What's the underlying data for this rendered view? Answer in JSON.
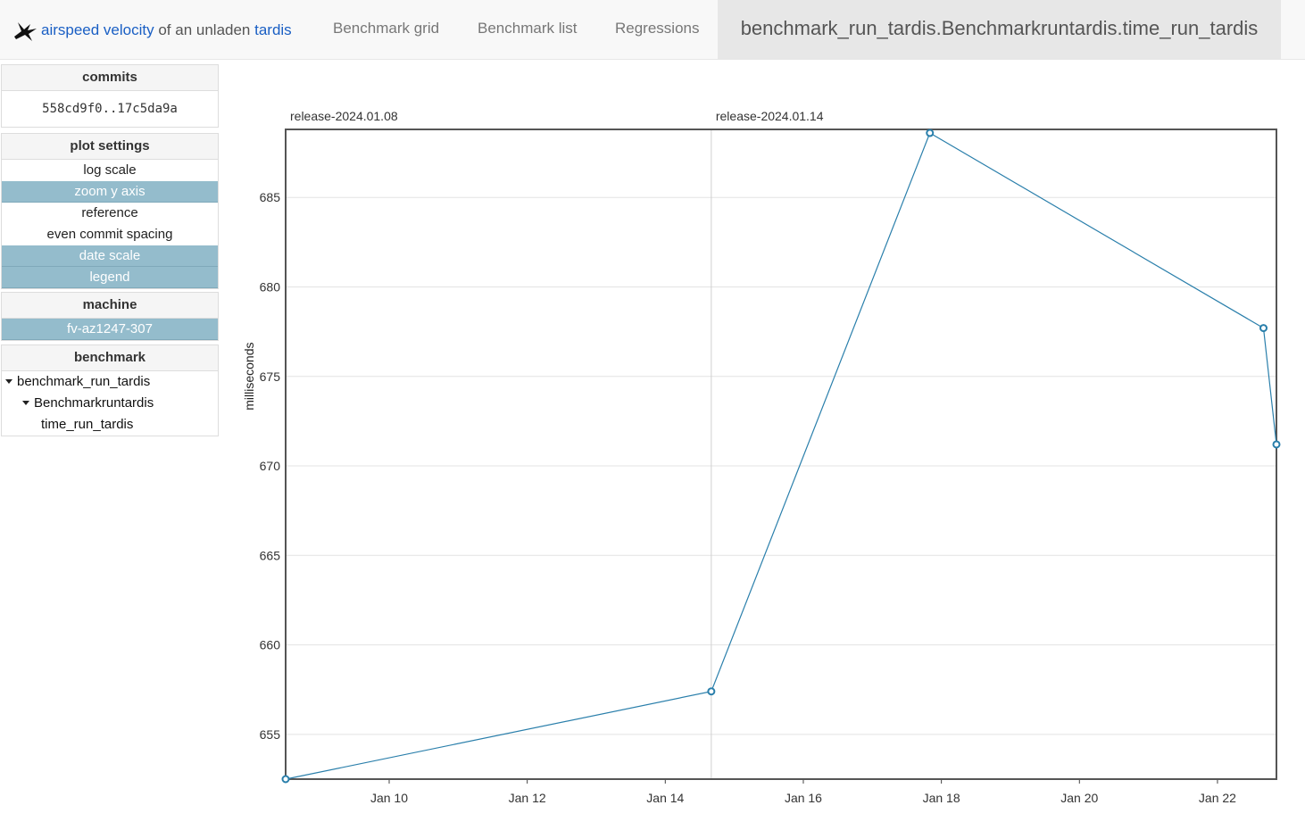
{
  "nav": {
    "brand": {
      "part1": "airspeed velocity",
      "part2": " of an unladen ",
      "part3": "tardis",
      "logo_icon": "swallow-bird-icon"
    },
    "items": [
      "Benchmark grid",
      "Benchmark list",
      "Regressions"
    ],
    "active": "benchmark_run_tardis.Benchmarkruntardis.time_run_tardis"
  },
  "sidebar": {
    "commits": {
      "title": "commits",
      "value": "558cd9f0..17c5da9a"
    },
    "plot_settings": {
      "title": "plot settings",
      "options": [
        {
          "label": "log scale",
          "active": false
        },
        {
          "label": "zoom y axis",
          "active": true
        },
        {
          "label": "reference",
          "active": false
        },
        {
          "label": "even commit spacing",
          "active": false
        },
        {
          "label": "date scale",
          "active": true
        },
        {
          "label": "legend",
          "active": true
        }
      ]
    },
    "machine": {
      "title": "machine",
      "value": "fv-az1247-307"
    },
    "benchmark": {
      "title": "benchmark",
      "tree": [
        {
          "label": "benchmark_run_tardis",
          "level": 0,
          "expanded": true
        },
        {
          "label": "Benchmarkruntardis",
          "level": 1,
          "expanded": true
        },
        {
          "label": "time_run_tardis",
          "level": 2,
          "expanded": false
        }
      ]
    }
  },
  "chart_data": {
    "type": "line",
    "title": "",
    "xlabel": "",
    "ylabel": "milliseconds",
    "x_is_date": true,
    "xlim": [
      "2024-01-08 12:00",
      "2024-01-22 20:30"
    ],
    "ylim": [
      652.5,
      688.8
    ],
    "x_ticks": [
      {
        "date": "2024-01-10",
        "label": "Jan 10"
      },
      {
        "date": "2024-01-12",
        "label": "Jan 12"
      },
      {
        "date": "2024-01-14",
        "label": "Jan 14"
      },
      {
        "date": "2024-01-16",
        "label": "Jan 16"
      },
      {
        "date": "2024-01-18",
        "label": "Jan 18"
      },
      {
        "date": "2024-01-20",
        "label": "Jan 20"
      },
      {
        "date": "2024-01-22",
        "label": "Jan 22"
      }
    ],
    "y_ticks": [
      655,
      660,
      665,
      670,
      675,
      680,
      685
    ],
    "grid": true,
    "releases": [
      {
        "label": "release-2024.01.08",
        "date": "2024-01-08 12:00"
      },
      {
        "label": "release-2024.01.14",
        "date": "2024-01-14 16:00"
      }
    ],
    "series": [
      {
        "color": "#2a7fab",
        "points": [
          {
            "date": "2024-01-08 12:00",
            "value": 652.5
          },
          {
            "date": "2024-01-14 16:00",
            "value": 657.4
          },
          {
            "date": "2024-01-17 20:00",
            "value": 688.6
          },
          {
            "date": "2024-01-22 16:00",
            "value": 677.7
          },
          {
            "date": "2024-01-22 20:30",
            "value": 671.2
          }
        ]
      }
    ]
  }
}
